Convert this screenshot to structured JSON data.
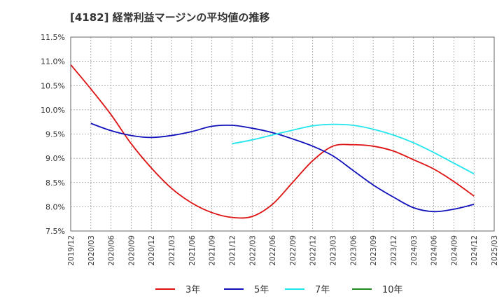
{
  "chart_data": {
    "type": "line",
    "title": "[4182]  経常利益マージンの平均値の推移",
    "xlabel": "",
    "ylabel": "",
    "x": [
      "2019/12",
      "2020/03",
      "2020/06",
      "2020/09",
      "2020/12",
      "2021/03",
      "2021/06",
      "2021/09",
      "2021/12",
      "2022/03",
      "2022/06",
      "2022/09",
      "2022/12",
      "2023/03",
      "2023/06",
      "2023/09",
      "2023/12",
      "2024/03",
      "2024/06",
      "2024/09",
      "2024/12",
      "2025/03"
    ],
    "ylim": [
      7.5,
      11.5
    ],
    "yticks": [
      "11.5%",
      "11.0%",
      "10.5%",
      "10.0%",
      "9.5%",
      "9.0%",
      "8.5%",
      "8.0%",
      "7.5%"
    ],
    "grid": true,
    "legend_position": "bottom",
    "series": [
      {
        "name": "3年",
        "color": "#dd1111",
        "values": [
          10.93,
          10.43,
          9.9,
          9.3,
          8.8,
          8.38,
          8.08,
          7.88,
          7.78,
          7.8,
          8.05,
          8.5,
          8.95,
          9.25,
          9.28,
          9.25,
          9.15,
          8.97,
          8.78,
          8.52,
          8.22,
          null
        ]
      },
      {
        "name": "5年",
        "color": "#1111bb",
        "values": [
          null,
          9.72,
          9.57,
          9.47,
          9.43,
          9.47,
          9.55,
          9.66,
          9.68,
          9.62,
          9.53,
          9.4,
          9.25,
          9.05,
          8.75,
          8.45,
          8.2,
          7.98,
          7.9,
          7.95,
          8.05,
          null
        ]
      },
      {
        "name": "7年",
        "color": "#22e5ee",
        "values": [
          null,
          null,
          null,
          null,
          null,
          null,
          null,
          null,
          9.3,
          9.38,
          9.48,
          9.58,
          9.67,
          9.7,
          9.68,
          9.6,
          9.48,
          9.32,
          9.12,
          8.9,
          8.68,
          null
        ]
      },
      {
        "name": "10年",
        "color": "#228822",
        "values": [
          null,
          null,
          null,
          null,
          null,
          null,
          null,
          null,
          null,
          null,
          null,
          null,
          null,
          null,
          null,
          null,
          null,
          null,
          null,
          null,
          null,
          null
        ]
      }
    ]
  }
}
